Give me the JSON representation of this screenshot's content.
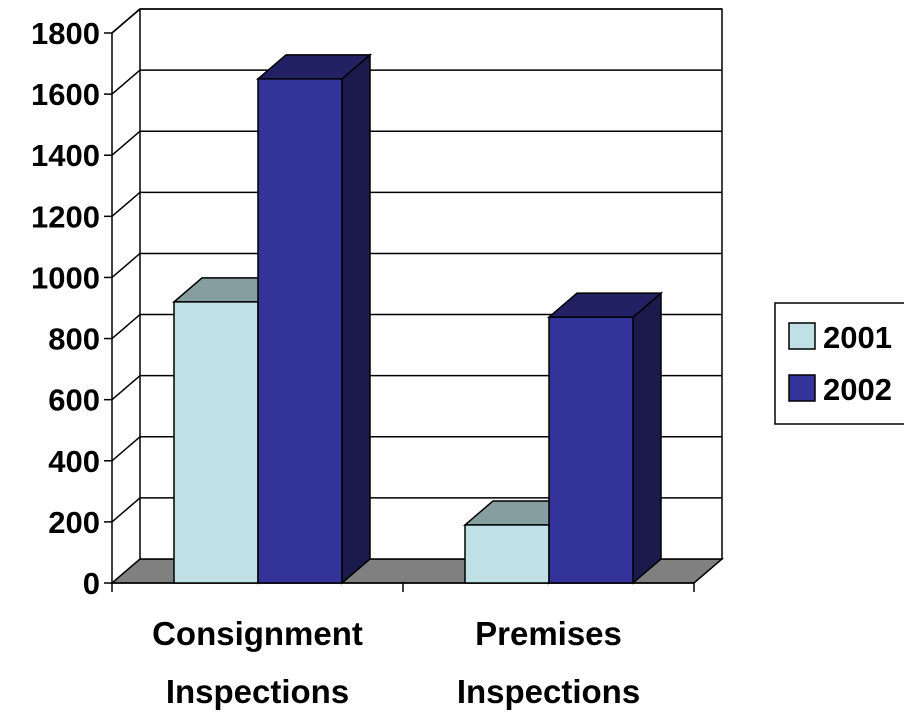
{
  "chart_data": {
    "type": "bar",
    "categories": [
      [
        "Consignment",
        "Inspections"
      ],
      [
        "Premises",
        "Inspections"
      ]
    ],
    "series": [
      {
        "name": "2001",
        "values": [
          920,
          190
        ],
        "color": "#bfe1e5"
      },
      {
        "name": "2002",
        "values": [
          1650,
          870
        ],
        "color": "#33339a"
      }
    ],
    "y_ticks": [
      "0",
      "200",
      "400",
      "600",
      "800",
      "1000",
      "1200",
      "1400",
      "1600",
      "1800"
    ],
    "ylim": [
      0,
      1800
    ],
    "grid": true,
    "legend_position": "right",
    "title": "",
    "xlabel": "",
    "ylabel": ""
  }
}
